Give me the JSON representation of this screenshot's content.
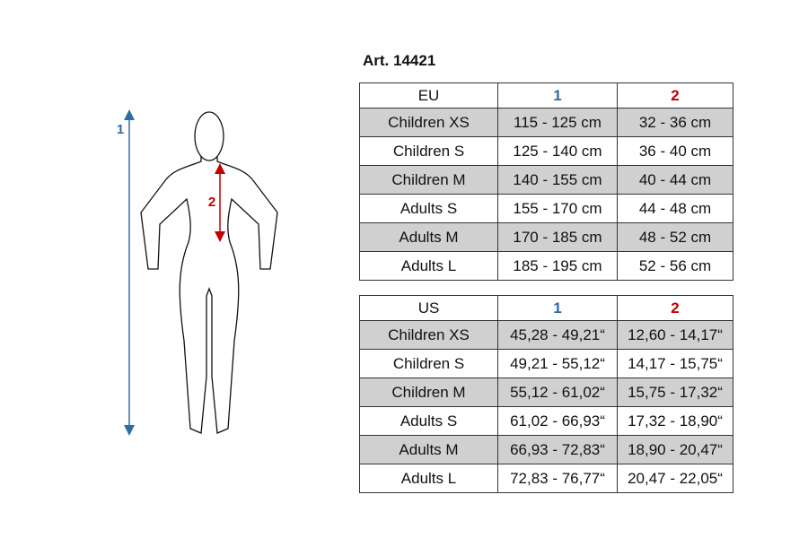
{
  "title": "Art. 14421",
  "figure": {
    "label_1": "1",
    "label_2": "2"
  },
  "tables": [
    {
      "header": [
        "EU",
        "1",
        "2"
      ],
      "rows": [
        [
          "Children XS",
          "115 - 125 cm",
          "32 - 36 cm"
        ],
        [
          "Children S",
          "125 - 140 cm",
          "36 - 40 cm"
        ],
        [
          "Children M",
          "140 - 155 cm",
          "40 - 44 cm"
        ],
        [
          "Adults S",
          "155 - 170 cm",
          "44 - 48 cm"
        ],
        [
          "Adults M",
          "170 - 185 cm",
          "48 - 52 cm"
        ],
        [
          "Adults L",
          "185 - 195 cm",
          "52 - 56 cm"
        ]
      ]
    },
    {
      "header": [
        "US",
        "1",
        "2"
      ],
      "rows": [
        [
          "Children XS",
          "45,28 - 49,21“",
          "12,60 - 14,17“"
        ],
        [
          "Children S",
          "49,21 - 55,12“",
          "14,17 - 15,75“"
        ],
        [
          "Children M",
          "55,12 - 61,02“",
          "15,75 - 17,32“"
        ],
        [
          "Adults S",
          "61,02 - 66,93“",
          "17,32 - 18,90“"
        ],
        [
          "Adults M",
          "66,93 - 72,83“",
          "18,90 - 20,47“"
        ],
        [
          "Adults L",
          "72,83 - 76,77“",
          "20,47 - 22,05“"
        ]
      ]
    }
  ]
}
